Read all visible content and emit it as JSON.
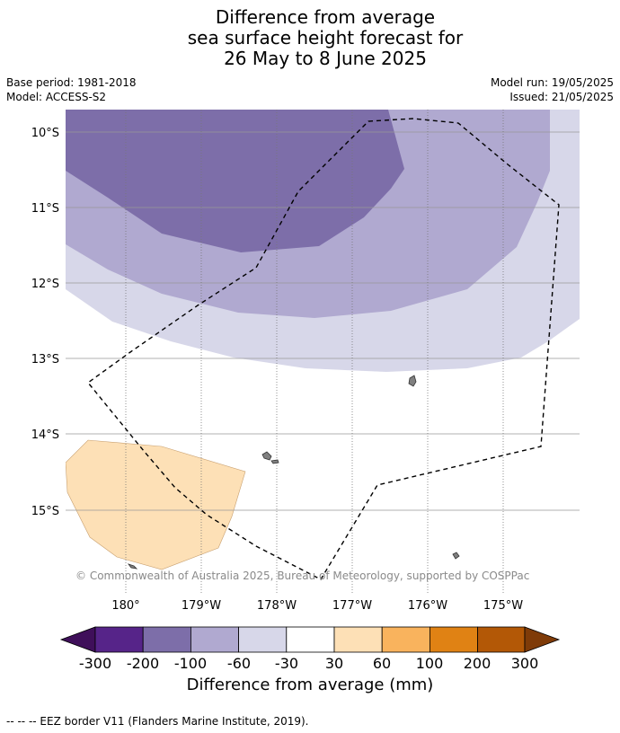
{
  "title": {
    "line1": "Difference from average",
    "line2": "sea surface height forecast for",
    "line3": "26 May to 8 June 2025"
  },
  "meta": {
    "base_period": "Base period: 1981-2018",
    "model": "Model: ACCESS-S2",
    "model_run": "Model run: 19/05/2025",
    "issued": "Issued: 21/05/2025"
  },
  "map": {
    "lat_labels": [
      "10°S",
      "11°S",
      "12°S",
      "13°S",
      "14°S",
      "15°S"
    ],
    "lon_labels": [
      "180°",
      "179°W",
      "178°W",
      "177°W",
      "176°W",
      "175°W"
    ],
    "copyright": "© Commonwealth of Australia 2025, Bureau of Meteorology, supported by COSPPac",
    "eez_border": "dashed black line",
    "colors": {
      "land": "#808080",
      "grid": "#999999"
    }
  },
  "colorbar": {
    "title": "Difference from average (mm)",
    "ticks": [
      "-300",
      "-200",
      "-100",
      "-60",
      "-30",
      "30",
      "60",
      "100",
      "200",
      "300"
    ],
    "colors": [
      "#3f0f5a",
      "#562489",
      "#7d6ea9",
      "#b0a9d0",
      "#d7d7e9",
      "#ffffff",
      "#fde0b6",
      "#f9b35d",
      "#e08214",
      "#b35806",
      "#7f3b08"
    ]
  },
  "footnote": "--  --  -- EEZ border V11 (Flanders Marine Institute, 2019)."
}
